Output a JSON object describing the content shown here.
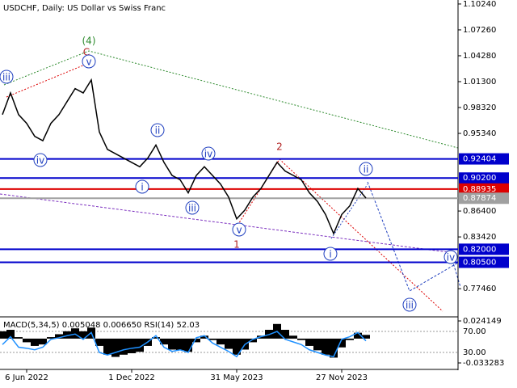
{
  "chart_data": [
    {
      "type": "line",
      "title": "USDCHF, Daily:  US Dollar vs Swiss Franc",
      "categories": [
        null,
        null,
        null,
        "6 Jun 2022",
        null,
        null,
        null,
        null,
        null,
        null,
        null,
        null,
        null,
        null,
        null,
        null,
        "1 Dec 2022",
        null,
        null,
        null,
        null,
        null,
        null,
        null,
        null,
        null,
        null,
        null,
        null,
        "31 May 2023",
        null,
        null,
        null,
        null,
        null,
        null,
        null,
        null,
        null,
        null,
        null,
        null,
        "27 Nov 2023",
        null,
        null,
        null
      ],
      "series": [
        {
          "color": "#000000",
          "values": [
            0.975,
            1.0,
            0.975,
            0.965,
            0.95,
            0.945,
            0.965,
            0.975,
            0.99,
            1.005,
            1.0,
            1.015,
            0.955,
            0.935,
            0.93,
            0.925,
            0.92,
            0.915,
            0.925,
            0.94,
            0.92,
            0.905,
            0.9,
            0.885,
            0.905,
            0.915,
            0.905,
            0.895,
            0.88,
            0.855,
            0.865,
            0.88,
            0.89,
            0.905,
            0.92,
            0.91,
            0.905,
            0.9,
            0.885,
            0.875,
            0.86,
            0.838,
            0.86,
            0.87,
            0.89,
            0.879
          ]
        }
      ],
      "ylim": [
        0.744,
        1.107
      ],
      "yticks": [
        {
          "value": 1.1024,
          "label": "1.10240"
        },
        {
          "value": 1.0726,
          "label": "1.07260"
        },
        {
          "value": 1.0428,
          "label": "1.04280"
        },
        {
          "value": 1.013,
          "label": "1.01300"
        },
        {
          "value": 0.9832,
          "label": "0.98320"
        },
        {
          "value": 0.9534,
          "label": "0.95340"
        },
        {
          "value": 0.864,
          "label": "0.86400"
        },
        {
          "value": 0.8342,
          "label": "0.83420"
        },
        {
          "value": 0.7746,
          "label": "0.77460"
        }
      ],
      "levels": [
        {
          "value": 0.92404,
          "label": "0.92404",
          "color": "#0000cc"
        },
        {
          "value": 0.902,
          "label": "0.90200",
          "color": "#0000cc"
        },
        {
          "value": 0.88935,
          "label": "0.88935",
          "color": "#dd0000"
        },
        {
          "value": 0.87874,
          "label": "0.87874",
          "color": "#a0a0a0"
        },
        {
          "value": 0.82,
          "label": "0.82000",
          "color": "#0000cc"
        },
        {
          "value": 0.805,
          "label": "0.80500",
          "color": "#0000cc"
        }
      ],
      "annotations": [
        {
          "text": "(4)",
          "color": "#2e8b2e",
          "circled": false
        },
        {
          "text": "C",
          "color": "#b22222",
          "circled": false
        },
        {
          "text": "v",
          "color": "#1f3fbf",
          "circled": true
        },
        {
          "text": "iii",
          "color": "#1f3fbf",
          "circled": true
        },
        {
          "text": "iv",
          "color": "#1f3fbf",
          "circled": true
        },
        {
          "text": "ii",
          "color": "#1f3fbf",
          "circled": true
        },
        {
          "text": "i",
          "color": "#1f3fbf",
          "circled": true
        },
        {
          "text": "iv",
          "color": "#1f3fbf",
          "circled": true
        },
        {
          "text": "iii",
          "color": "#1f3fbf",
          "circled": true
        },
        {
          "text": "v",
          "color": "#1f3fbf",
          "circled": true
        },
        {
          "text": "1",
          "color": "#b22222",
          "circled": false
        },
        {
          "text": "2",
          "color": "#b22222",
          "circled": false
        },
        {
          "text": "ii",
          "color": "#1f3fbf",
          "circled": true
        },
        {
          "text": "i",
          "color": "#1f3fbf",
          "circled": true
        },
        {
          "text": "iv",
          "color": "#1f3fbf",
          "circled": true
        },
        {
          "text": "iii",
          "color": "#1f3fbf",
          "circled": true
        }
      ]
    },
    {
      "type": "bar",
      "title": "MACD(5,34,5) 0.005048 0.006650 RSI(14) 52.03",
      "series": [
        {
          "color": "#000000",
          "values": [
            0.01,
            0.012,
            0.002,
            -0.005,
            -0.01,
            -0.008,
            0.002,
            0.006,
            0.01,
            0.014,
            0.01,
            0.015,
            -0.01,
            -0.022,
            -0.025,
            -0.022,
            -0.02,
            -0.018,
            -0.01,
            0.002,
            -0.008,
            -0.015,
            -0.016,
            -0.018,
            -0.005,
            0.004,
            -0.002,
            -0.008,
            -0.014,
            -0.022,
            -0.015,
            -0.005,
            0.004,
            0.012,
            0.02,
            0.012,
            0.004,
            -0.002,
            -0.01,
            -0.016,
            -0.022,
            -0.026,
            -0.012,
            -0.002,
            0.008,
            0.005048
          ]
        },
        {
          "type": "line",
          "axis": "y2",
          "color": "#1e90ff",
          "values": [
            45,
            60,
            40,
            38,
            35,
            40,
            55,
            58,
            62,
            65,
            55,
            68,
            30,
            25,
            30,
            35,
            38,
            40,
            50,
            62,
            40,
            32,
            35,
            30,
            58,
            62,
            48,
            40,
            32,
            22,
            45,
            55,
            60,
            64,
            70,
            55,
            50,
            45,
            35,
            30,
            25,
            22,
            55,
            60,
            68,
            52.03
          ]
        }
      ],
      "ylim": [
        -0.0399,
        0.0286
      ],
      "yticks": [
        0.024149,
        -0.033283
      ],
      "y2lim": [
        0.8,
        96.2
      ],
      "y2ticks": [
        {
          "value": 70,
          "label": "70.00"
        },
        {
          "value": 30,
          "label": "30.00"
        }
      ]
    }
  ]
}
